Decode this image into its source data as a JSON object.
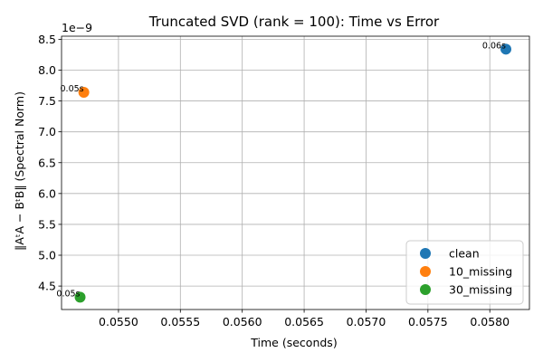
{
  "chart_data": {
    "type": "scatter",
    "title": "Truncated SVD (rank = 100): Time vs Error",
    "xlabel": "Time (seconds)",
    "ylabel": "‖AᵗA − BᵗB‖ (Spectral Norm)",
    "y_offset_label": "1e−9",
    "xlim": [
      0.05454,
      0.05832
    ],
    "ylim": [
      4.12,
      8.55
    ],
    "x_ticks": [
      0.055,
      0.0555,
      0.056,
      0.0565,
      0.057,
      0.0575,
      0.058
    ],
    "x_tick_labels": [
      "0.0550",
      "0.0555",
      "0.0560",
      "0.0565",
      "0.0570",
      "0.0575",
      "0.0580"
    ],
    "y_ticks": [
      4.5,
      5.0,
      5.5,
      6.0,
      6.5,
      7.0,
      7.5,
      8.0,
      8.5
    ],
    "y_tick_labels": [
      "4.5",
      "5.0",
      "5.5",
      "6.0",
      "6.5",
      "7.0",
      "7.5",
      "8.0",
      "8.5"
    ],
    "grid": true,
    "legend_position": "lower-right",
    "series": [
      {
        "name": "clean",
        "color": "#1f77b4",
        "x": [
          0.05813
        ],
        "y": [
          8.34
        ],
        "annotations": [
          "0.06s"
        ]
      },
      {
        "name": "10_missing",
        "color": "#ff7f0e",
        "x": [
          0.05472
        ],
        "y": [
          7.64
        ],
        "annotations": [
          "0.05s"
        ]
      },
      {
        "name": "30_missing",
        "color": "#2ca02c",
        "x": [
          0.05469
        ],
        "y": [
          4.32
        ],
        "annotations": [
          "0.05s"
        ]
      }
    ]
  }
}
